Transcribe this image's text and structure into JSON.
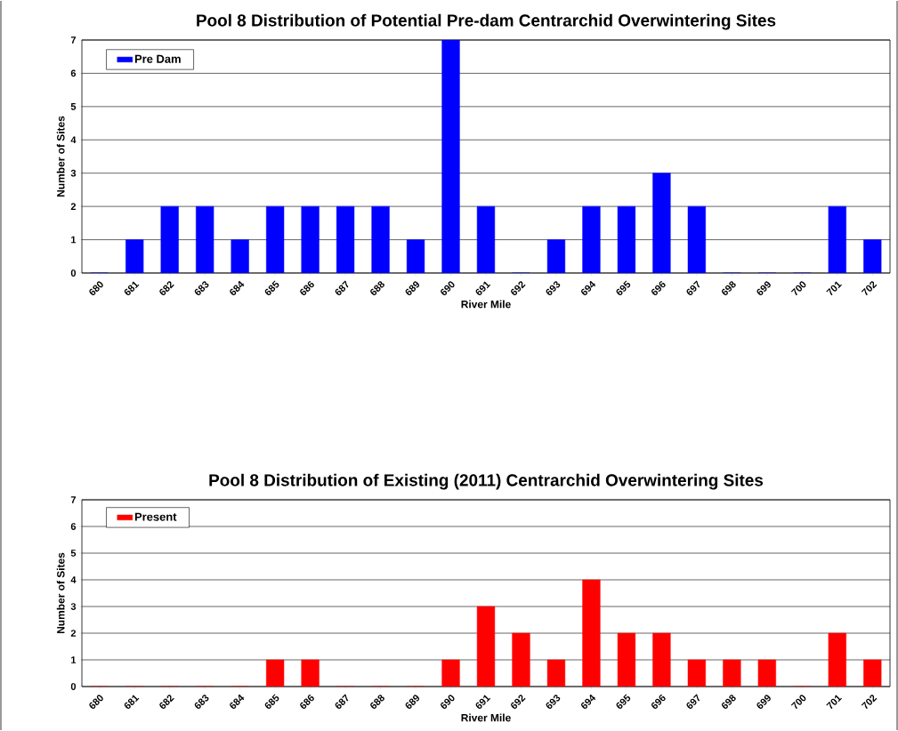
{
  "chart_data": [
    {
      "type": "bar",
      "title": "Pool 8 Distribution of Potential Pre-dam Centrarchid Overwintering Sites",
      "xlabel": "River Mile",
      "ylabel": "Number of Sites",
      "categories": [
        "680",
        "681",
        "682",
        "683",
        "684",
        "685",
        "686",
        "687",
        "688",
        "689",
        "690",
        "691",
        "692",
        "693",
        "694",
        "695",
        "696",
        "697",
        "698",
        "699",
        "700",
        "701",
        "702"
      ],
      "series": [
        {
          "name": "Pre Dam",
          "color": "#0000ff",
          "values": [
            0,
            1,
            2,
            2,
            1,
            2,
            2,
            2,
            2,
            1,
            7,
            2,
            0,
            1,
            2,
            2,
            3,
            2,
            0,
            0,
            0,
            2,
            1
          ]
        }
      ],
      "ylim": [
        0,
        7
      ],
      "yticks": [
        0,
        1,
        2,
        3,
        4,
        5,
        6,
        7
      ],
      "grid": "y",
      "legend": "top left"
    },
    {
      "type": "bar",
      "title": "Pool 8 Distribution of Existing (2011) Centrarchid Overwintering Sites",
      "xlabel": "River Mile",
      "ylabel": "Number of Sites",
      "categories": [
        "680",
        "681",
        "682",
        "683",
        "684",
        "685",
        "686",
        "687",
        "688",
        "689",
        "690",
        "691",
        "692",
        "693",
        "694",
        "695",
        "696",
        "697",
        "698",
        "699",
        "700",
        "701",
        "702"
      ],
      "series": [
        {
          "name": "Present",
          "color": "#ff0000",
          "values": [
            0,
            0,
            0,
            0,
            0,
            1,
            1,
            0,
            0,
            0,
            1,
            3,
            2,
            1,
            4,
            2,
            2,
            1,
            1,
            1,
            0,
            2,
            1
          ]
        }
      ],
      "ylim": [
        0,
        7
      ],
      "yticks": [
        0,
        1,
        2,
        3,
        4,
        5,
        6,
        7
      ],
      "grid": "y",
      "legend": "top left"
    }
  ]
}
